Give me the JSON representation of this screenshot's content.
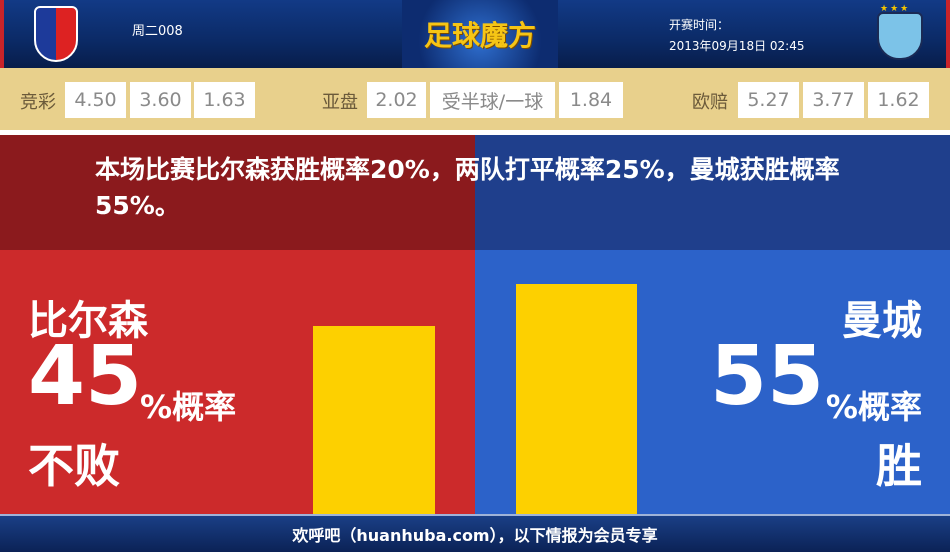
{
  "header": {
    "match_code": "周二008",
    "brand": "足球魔方",
    "kickoff_label": "开赛时间：",
    "kickoff_time": "2013年09月18日 02:45",
    "home_logo_text": "FC VIKTORIA PLZEŇ",
    "away_logo_text": "MCFC"
  },
  "odds": {
    "jingcai": {
      "label": "竞彩",
      "values": [
        "4.50",
        "3.60",
        "1.63"
      ]
    },
    "yapan": {
      "label": "亚盘",
      "home": "2.02",
      "handicap": "受半球/一球",
      "away": "1.84"
    },
    "ouzhou": {
      "label": "欧赔",
      "values": [
        "5.27",
        "3.77",
        "1.62"
      ]
    }
  },
  "summary": "本场比赛比尔森获胜概率20%，两队打平概率25%，曼城获胜概率55%。",
  "home": {
    "team": "比尔森",
    "percent": "45",
    "percent_suffix": "%概率",
    "outcome": "不败",
    "value": 45
  },
  "away": {
    "team": "曼城",
    "percent": "55",
    "percent_suffix": "%概率",
    "outcome": "胜",
    "value": 55
  },
  "colors": {
    "home": "#cc2a2b",
    "away": "#2c62c9",
    "bar": "#fdd000"
  },
  "footer": "欢呼吧（huanhuba.com），以下情报为会员专享"
}
